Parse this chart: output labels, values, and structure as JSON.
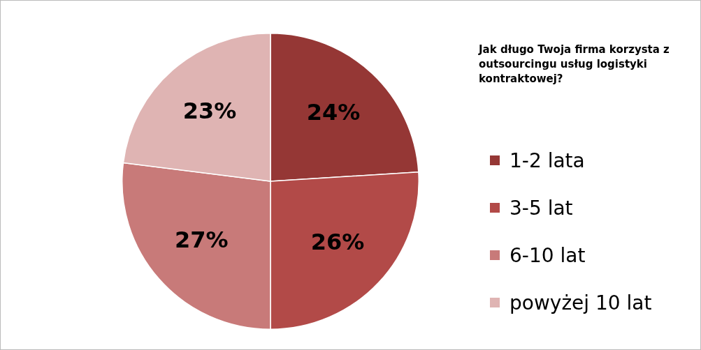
{
  "chart_data": {
    "type": "pie",
    "title": "Jak długo Twoja firma korzysta z outsourcingu  usług logistyki kontraktowej?",
    "categories": [
      "1-2 lata",
      "3-5 lat",
      "6-10 lat",
      "powyżej 10 lat"
    ],
    "values": [
      24,
      26,
      27,
      23
    ],
    "colors": [
      "#953735",
      "#b24a48",
      "#c87a79",
      "#dfb4b3"
    ],
    "value_labels": [
      "24%",
      "26%",
      "27%",
      "23%"
    ],
    "legend": "right"
  }
}
